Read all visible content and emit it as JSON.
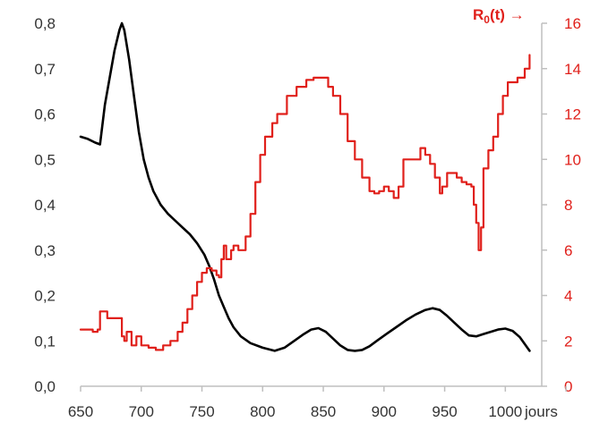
{
  "chart_data": {
    "type": "line",
    "xlabel": "jours",
    "x_ticks": [
      650,
      700,
      750,
      800,
      850,
      900,
      950,
      1000
    ],
    "xlim": [
      650,
      1030
    ],
    "y_left": {
      "lim": [
        0,
        0.8
      ],
      "ticks": [
        "0,0",
        "0,1",
        "0,2",
        "0,3",
        "0,4",
        "0,5",
        "0,6",
        "0,7",
        "0,8"
      ]
    },
    "y_right": {
      "lim": [
        0,
        16
      ],
      "ticks": [
        "0",
        "2",
        "4",
        "6",
        "8",
        "10",
        "12",
        "14",
        "16"
      ],
      "label": {
        "main": "R",
        "sub": "0",
        "tail": "(t) →"
      }
    },
    "grid": false,
    "colors": {
      "black_series": "#000000",
      "red_series": "#e0201b",
      "right_axis": "#e0201b"
    },
    "series": [
      {
        "axis": "left",
        "color": "#000000",
        "x": [
          650,
          656,
          662,
          666,
          670,
          674,
          678,
          682,
          684,
          686,
          690,
          694,
          698,
          702,
          706,
          710,
          716,
          722,
          728,
          734,
          740,
          746,
          752,
          756,
          760,
          764,
          768,
          772,
          776,
          782,
          790,
          800,
          810,
          818,
          826,
          834,
          840,
          846,
          852,
          858,
          864,
          870,
          876,
          882,
          888,
          894,
          902,
          910,
          918,
          926,
          934,
          940,
          946,
          952,
          958,
          964,
          970,
          976,
          982,
          988,
          994,
          1000,
          1006,
          1012,
          1020
        ],
        "y": [
          0.55,
          0.545,
          0.537,
          0.533,
          0.62,
          0.68,
          0.74,
          0.785,
          0.8,
          0.785,
          0.72,
          0.64,
          0.56,
          0.5,
          0.46,
          0.43,
          0.4,
          0.38,
          0.365,
          0.35,
          0.335,
          0.315,
          0.29,
          0.265,
          0.235,
          0.2,
          0.175,
          0.15,
          0.13,
          0.11,
          0.095,
          0.085,
          0.078,
          0.085,
          0.1,
          0.115,
          0.125,
          0.128,
          0.12,
          0.105,
          0.09,
          0.08,
          0.078,
          0.08,
          0.088,
          0.1,
          0.115,
          0.13,
          0.145,
          0.158,
          0.168,
          0.172,
          0.168,
          0.155,
          0.14,
          0.125,
          0.112,
          0.11,
          0.115,
          0.12,
          0.125,
          0.127,
          0.122,
          0.108,
          0.078
        ]
      },
      {
        "axis": "right",
        "color": "#e0201b",
        "x": [
          650,
          660,
          664,
          666,
          672,
          674,
          678,
          682,
          684,
          686,
          688,
          692,
          696,
          700,
          706,
          712,
          718,
          724,
          730,
          734,
          738,
          742,
          746,
          750,
          754,
          758,
          762,
          764,
          766,
          768,
          770,
          774,
          776,
          780,
          786,
          790,
          794,
          798,
          802,
          808,
          812,
          820,
          828,
          836,
          842,
          848,
          854,
          858,
          864,
          870,
          876,
          882,
          888,
          892,
          896,
          900,
          904,
          908,
          912,
          916,
          920,
          926,
          930,
          934,
          938,
          942,
          946,
          948,
          952,
          956,
          960,
          964,
          968,
          972,
          974,
          976,
          978,
          980,
          982,
          986,
          990,
          994,
          998,
          1002,
          1006,
          1010,
          1016,
          1020
        ],
        "y": [
          2.5,
          2.4,
          2.5,
          3.3,
          3.0,
          3.0,
          3.0,
          3.0,
          2.2,
          2.0,
          2.4,
          1.8,
          2.2,
          1.8,
          1.7,
          1.6,
          1.8,
          2.0,
          2.4,
          2.8,
          3.4,
          4.0,
          4.6,
          5.0,
          5.2,
          5.1,
          4.9,
          4.8,
          5.6,
          6.2,
          5.6,
          6.0,
          6.2,
          6.0,
          6.6,
          7.6,
          9.0,
          10.2,
          11.0,
          11.6,
          12.0,
          12.8,
          13.2,
          13.5,
          13.6,
          13.6,
          13.2,
          12.8,
          12.0,
          10.8,
          10.0,
          9.2,
          8.6,
          8.5,
          8.6,
          8.8,
          8.6,
          8.3,
          8.8,
          10.0,
          10.0,
          10.0,
          10.5,
          10.2,
          9.8,
          9.2,
          8.5,
          8.8,
          9.4,
          9.4,
          9.2,
          9.0,
          8.9,
          8.8,
          8.0,
          7.2,
          6.0,
          7.0,
          9.6,
          10.4,
          11.0,
          12.0,
          12.8,
          13.4,
          13.4,
          13.6,
          14.0,
          14.6
        ]
      }
    ]
  }
}
